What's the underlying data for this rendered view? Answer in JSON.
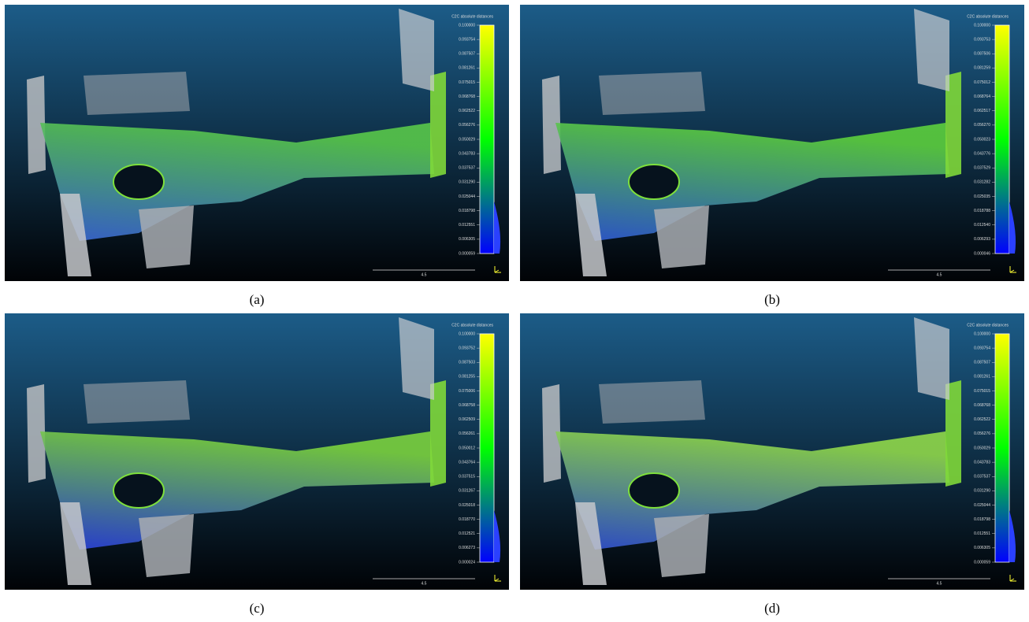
{
  "panels": [
    {
      "label": "(a)",
      "colorbar": {
        "title": "C2C absolute distances",
        "ticks": [
          "0.100000",
          "0.093754",
          "0.087507",
          "0.081261",
          "0.075015",
          "0.068768",
          "0.062522",
          "0.056276",
          "0.050029",
          "0.043783",
          "0.037537",
          "0.031290",
          "0.025044",
          "0.018798",
          "0.012551",
          "0.006305",
          "0.000059"
        ]
      },
      "scale": "4.5"
    },
    {
      "label": "(b)",
      "colorbar": {
        "title": "C2C absolute distances",
        "ticks": [
          "0.100000",
          "0.093753",
          "0.087506",
          "0.081259",
          "0.075012",
          "0.068764",
          "0.062517",
          "0.056270",
          "0.050023",
          "0.043776",
          "0.037529",
          "0.031282",
          "0.025035",
          "0.018788",
          "0.012540",
          "0.006293",
          "0.000046"
        ]
      },
      "scale": "4.5"
    },
    {
      "label": "(c)",
      "colorbar": {
        "title": "C2C absolute distances",
        "ticks": [
          "0.100000",
          "0.093752",
          "0.087503",
          "0.081255",
          "0.075006",
          "0.068758",
          "0.062509",
          "0.056261",
          "0.050012",
          "0.043764",
          "0.037515",
          "0.031267",
          "0.025018",
          "0.018770",
          "0.012521",
          "0.006273",
          "0.000024"
        ]
      },
      "scale": "4.5"
    },
    {
      "label": "(d)",
      "colorbar": {
        "title": "C2C absolute distances",
        "ticks": [
          "0.100000",
          "0.093754",
          "0.087507",
          "0.081261",
          "0.075015",
          "0.068768",
          "0.062522",
          "0.056276",
          "0.050029",
          "0.043783",
          "0.037537",
          "0.031290",
          "0.025044",
          "0.018798",
          "0.012551",
          "0.006305",
          "0.000059"
        ]
      },
      "scale": "4.5"
    }
  ]
}
